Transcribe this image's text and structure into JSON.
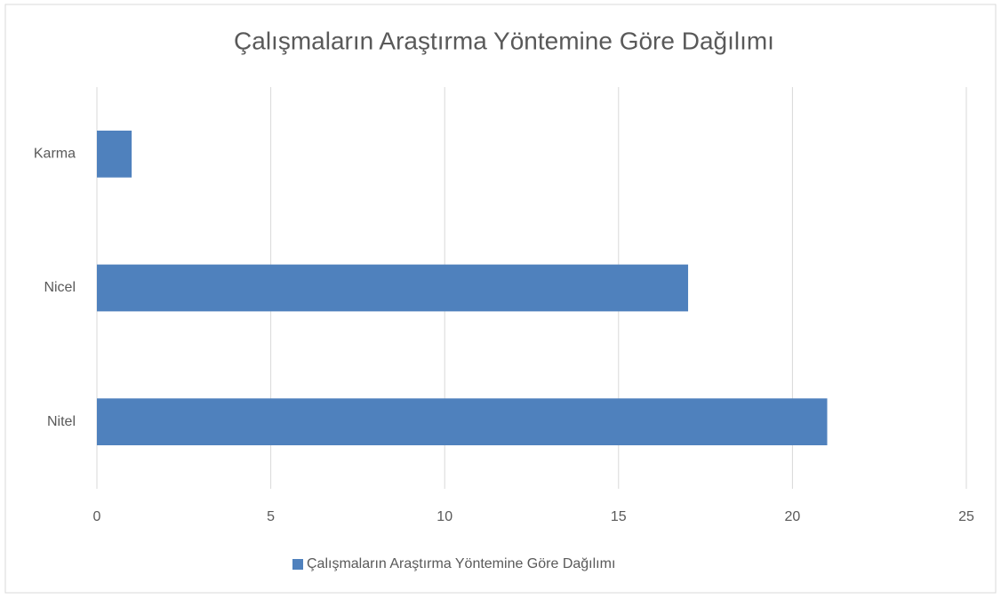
{
  "chart_data": {
    "type": "hbar",
    "title": "Çalışmaların Araştırma Yöntemine Göre Dağılımı",
    "categories": [
      "Nitel",
      "Nicel",
      "Karma"
    ],
    "series": [
      {
        "name": "Çalışmaların Araştırma Yöntemine Göre Dağılımı",
        "color": "#4f81bd",
        "values": [
          21,
          17,
          1
        ]
      }
    ],
    "xlim": [
      0,
      25
    ],
    "xticks": [
      0,
      5,
      10,
      15,
      20,
      25
    ],
    "grid": true,
    "legend": "bottom"
  }
}
